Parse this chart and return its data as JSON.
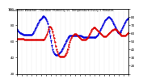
{
  "title": "Milwaukee Weather - Outdoor Humidity vs. Temperature Every 5 Minutes",
  "line1_color": "#0000DD",
  "line2_color": "#DD0000",
  "background_color": "#ffffff",
  "humidity_values": [
    75,
    74,
    73,
    72,
    71,
    70,
    70,
    69,
    69,
    68,
    68,
    68,
    68,
    68,
    68,
    68,
    68,
    68,
    68,
    68,
    69,
    70,
    72,
    74,
    76,
    78,
    80,
    82,
    84,
    86,
    87,
    88,
    89,
    90,
    91,
    91,
    90,
    89,
    87,
    85,
    82,
    78,
    73,
    67,
    61,
    55,
    50,
    47,
    45,
    44,
    43,
    43,
    43,
    44,
    45,
    46,
    47,
    48,
    50,
    52,
    54,
    56,
    58,
    60,
    62,
    64,
    65,
    66,
    67,
    67,
    67,
    67,
    67,
    67,
    67,
    67,
    67,
    67,
    67,
    67,
    67,
    67,
    67,
    66,
    66,
    65,
    65,
    65,
    65,
    65,
    65,
    65,
    65,
    65,
    65,
    65,
    65,
    65,
    65,
    65,
    65,
    65,
    66,
    67,
    68,
    70,
    72,
    74,
    76,
    78,
    80,
    82,
    84,
    86,
    87,
    88,
    89,
    90,
    90,
    89,
    88,
    87,
    85,
    83,
    81,
    79,
    77,
    75,
    73,
    71,
    70,
    70,
    71,
    72,
    74,
    76,
    78,
    80,
    82,
    84,
    86,
    87,
    88,
    89
  ],
  "temp_values": [
    53,
    53,
    53,
    53,
    53,
    53,
    53,
    53,
    53,
    53,
    52,
    52,
    52,
    52,
    52,
    52,
    52,
    52,
    52,
    52,
    52,
    52,
    52,
    52,
    52,
    52,
    52,
    52,
    52,
    52,
    52,
    52,
    52,
    52,
    52,
    52,
    53,
    55,
    57,
    59,
    62,
    65,
    68,
    68,
    67,
    65,
    62,
    58,
    54,
    49,
    44,
    40,
    37,
    34,
    32,
    31,
    31,
    31,
    31,
    31,
    31,
    32,
    33,
    35,
    37,
    40,
    43,
    46,
    49,
    52,
    54,
    56,
    57,
    58,
    59,
    59,
    59,
    58,
    57,
    56,
    55,
    54,
    53,
    52,
    52,
    52,
    52,
    52,
    52,
    53,
    54,
    55,
    57,
    59,
    61,
    63,
    65,
    66,
    67,
    67,
    67,
    66,
    65,
    64,
    63,
    62,
    61,
    60,
    59,
    58,
    57,
    56,
    56,
    56,
    56,
    57,
    58,
    59,
    60,
    61,
    62,
    63,
    64,
    64,
    65,
    65,
    65,
    64,
    63,
    62,
    61,
    60,
    59,
    58,
    57,
    57,
    57,
    57,
    57,
    57,
    58,
    59,
    60,
    61
  ],
  "ylim_left": [
    20,
    100
  ],
  "ylim_right": [
    10,
    90
  ],
  "yticks_left": [
    20,
    40,
    60,
    80,
    100
  ],
  "yticks_right": [
    10,
    20,
    30,
    40,
    50,
    60,
    70,
    80,
    90
  ],
  "ytick_labels_right": [
    "",
    "20",
    "30",
    "40",
    "50",
    "60",
    "70",
    "80",
    ""
  ],
  "ytick_labels_left": [
    "20",
    "40",
    "60",
    "80",
    "100"
  ]
}
